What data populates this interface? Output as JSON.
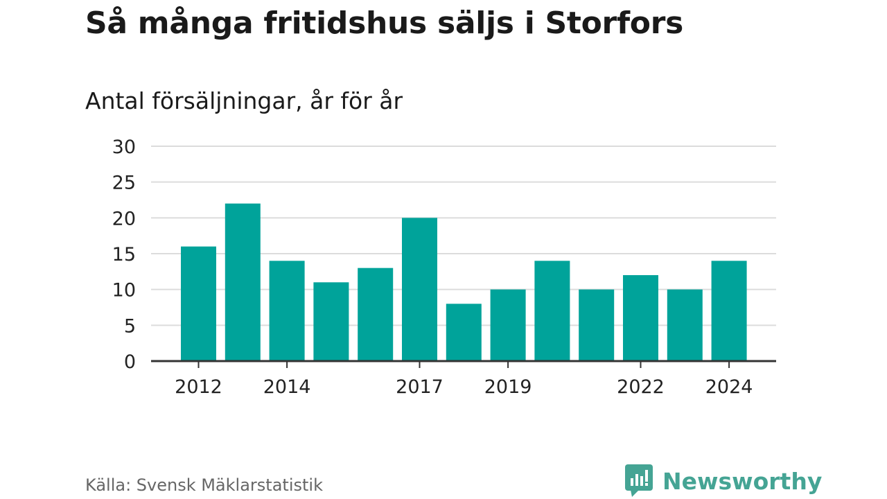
{
  "header": {
    "title": "Så många fritidshus säljs i Storfors",
    "subtitle": "Antal försäljningar, år för år"
  },
  "footer": {
    "source": "Källa: Svensk Mäklarstatistik",
    "brand": "Newsworthy",
    "brand_icon": "newsworthy-logo-icon"
  },
  "colors": {
    "bar": "#00a39a",
    "gridline": "#dcdcdc",
    "axis": "#333333",
    "brand": "#45a494"
  },
  "chart_data": {
    "type": "bar",
    "categories": [
      "2012",
      "2013",
      "2014",
      "2015",
      "2016",
      "2017",
      "2018",
      "2019",
      "2020",
      "2021",
      "2022",
      "2023",
      "2024"
    ],
    "values": [
      16,
      22,
      14,
      11,
      13,
      20,
      8,
      10,
      14,
      10,
      12,
      10,
      14
    ],
    "x_tick_labels": [
      "2012",
      "2014",
      "2017",
      "2019",
      "2022",
      "2024"
    ],
    "y_ticks": [
      0,
      5,
      10,
      15,
      20,
      25,
      30
    ],
    "ylim": [
      0,
      30
    ],
    "grid": true,
    "legend": "none"
  }
}
